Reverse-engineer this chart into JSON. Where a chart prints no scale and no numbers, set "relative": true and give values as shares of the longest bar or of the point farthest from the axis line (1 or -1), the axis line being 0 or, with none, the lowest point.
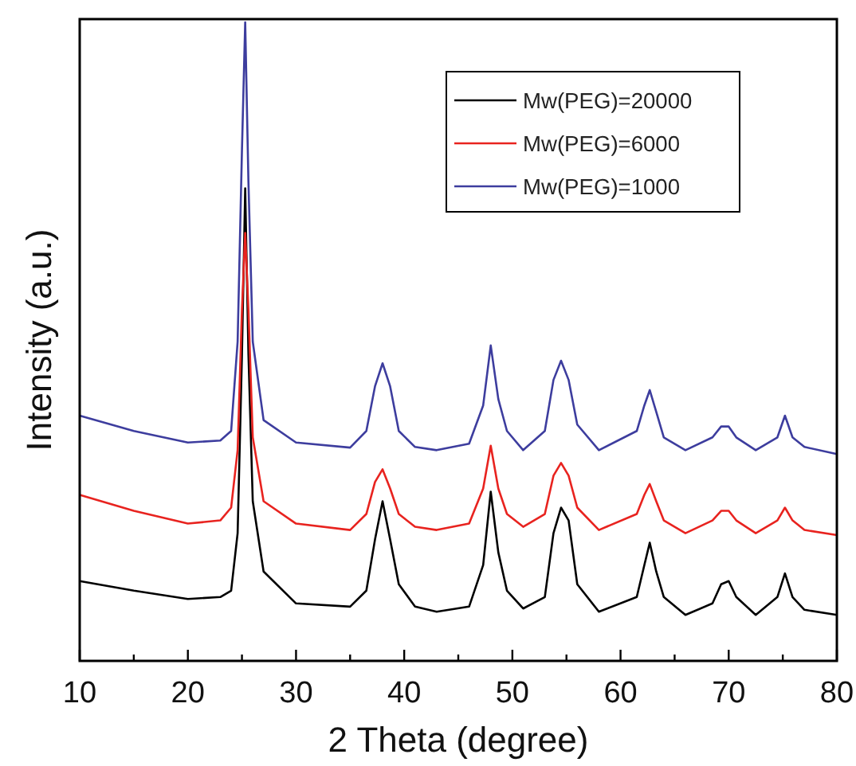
{
  "chart_data": {
    "type": "line",
    "relative": true,
    "xlabel": "2 Theta (degree)",
    "ylabel": "Intensity (a.u.)",
    "xlim": [
      10,
      80
    ],
    "xticks": [
      10,
      {
        "value": 15,
        "label": null
      },
      20,
      {
        "value": 25,
        "label": null
      },
      30,
      {
        "value": 35,
        "label": null
      },
      40,
      {
        "value": 45,
        "label": null
      },
      50,
      {
        "value": 55,
        "label": null
      },
      60,
      {
        "value": 65,
        "label": null
      },
      70,
      {
        "value": 75,
        "label": null
      },
      80
    ],
    "x": [
      10,
      15,
      20,
      23,
      24,
      24.6,
      25.0,
      25.3,
      25.6,
      26,
      27,
      30,
      35,
      36.5,
      37.3,
      38,
      38.7,
      39.5,
      41,
      43,
      46,
      47.3,
      48,
      48.7,
      49.5,
      51,
      53,
      53.8,
      54.5,
      55.2,
      56,
      58,
      61.5,
      62.2,
      62.7,
      63.3,
      64,
      66,
      68.5,
      69.3,
      70,
      70.7,
      72.5,
      74.5,
      75.2,
      75.9,
      77,
      80
    ],
    "series": [
      {
        "name": "Mw(PEG)=20000",
        "color": "#000000",
        "values": [
          0.125,
          0.11,
          0.097,
          0.1,
          0.11,
          0.2,
          0.48,
          0.74,
          0.48,
          0.25,
          0.14,
          0.09,
          0.085,
          0.11,
          0.19,
          0.25,
          0.19,
          0.12,
          0.085,
          0.077,
          0.085,
          0.15,
          0.265,
          0.17,
          0.11,
          0.082,
          0.1,
          0.2,
          0.24,
          0.22,
          0.12,
          0.077,
          0.1,
          0.15,
          0.185,
          0.14,
          0.1,
          0.072,
          0.09,
          0.12,
          0.125,
          0.1,
          0.072,
          0.1,
          0.137,
          0.1,
          0.08,
          0.072
        ]
      },
      {
        "name": "Mw(PEG)=6000",
        "color": "#e8231f",
        "values": [
          0.26,
          0.235,
          0.215,
          0.22,
          0.24,
          0.33,
          0.55,
          0.67,
          0.55,
          0.35,
          0.25,
          0.215,
          0.205,
          0.23,
          0.28,
          0.3,
          0.27,
          0.23,
          0.21,
          0.205,
          0.215,
          0.27,
          0.337,
          0.27,
          0.23,
          0.21,
          0.23,
          0.29,
          0.31,
          0.29,
          0.24,
          0.205,
          0.23,
          0.26,
          0.277,
          0.25,
          0.22,
          0.2,
          0.22,
          0.235,
          0.235,
          0.22,
          0.2,
          0.22,
          0.24,
          0.22,
          0.205,
          0.197
        ]
      },
      {
        "name": "Mw(PEG)=1000",
        "color": "#3d3d9e",
        "values": [
          0.384,
          0.36,
          0.342,
          0.345,
          0.36,
          0.5,
          0.8,
          1,
          0.75,
          0.5,
          0.377,
          0.342,
          0.334,
          0.36,
          0.43,
          0.466,
          0.43,
          0.36,
          0.335,
          0.33,
          0.34,
          0.4,
          0.494,
          0.41,
          0.36,
          0.33,
          0.36,
          0.44,
          0.47,
          0.44,
          0.37,
          0.33,
          0.36,
          0.4,
          0.424,
          0.39,
          0.35,
          0.33,
          0.35,
          0.367,
          0.367,
          0.35,
          0.33,
          0.35,
          0.384,
          0.35,
          0.335,
          0.324
        ]
      }
    ],
    "legend": "top right"
  }
}
